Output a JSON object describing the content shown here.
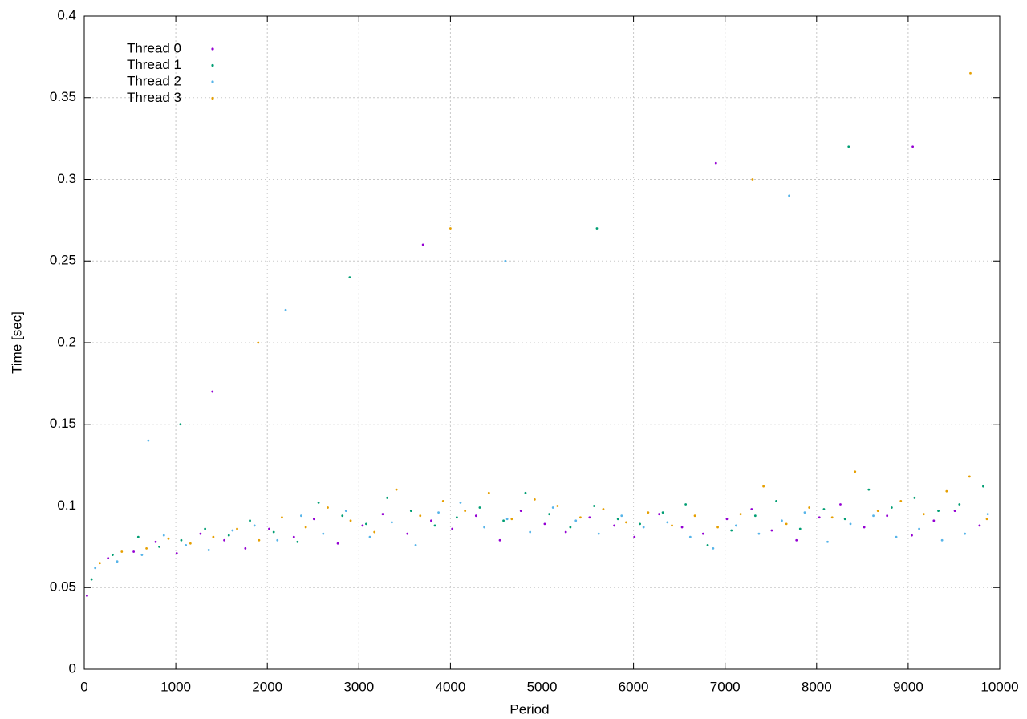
{
  "chart_data": {
    "type": "scatter",
    "x_label": "Period",
    "y_label": "Time [sec]",
    "xlim": [
      0,
      10000
    ],
    "ylim": [
      0,
      0.4
    ],
    "xticks": [
      0,
      1000,
      2000,
      3000,
      4000,
      5000,
      6000,
      7000,
      8000,
      9000,
      10000
    ],
    "yticks": [
      0,
      0.05,
      0.1,
      0.15,
      0.2,
      0.25,
      0.3,
      0.35,
      0.4
    ],
    "grid": true,
    "legend": "top-left",
    "series": [
      {
        "name": "Thread 0",
        "color": "#9400d3",
        "x": [
          30,
          260,
          540,
          780,
          1010,
          1270,
          1530,
          1760,
          2020,
          2290,
          2510,
          2770,
          3040,
          3260,
          3530,
          3790,
          4020,
          4280,
          4540,
          4770,
          5030,
          5260,
          5520,
          5790,
          6010,
          6280,
          6530,
          6760,
          7020,
          7290,
          7510,
          7780,
          8030,
          8260,
          8520,
          8770,
          9040,
          9280,
          9510,
          9780,
          1400,
          3700,
          6900,
          9050
        ],
        "values": [
          0.045,
          0.068,
          0.072,
          0.078,
          0.071,
          0.083,
          0.079,
          0.074,
          0.086,
          0.081,
          0.092,
          0.077,
          0.088,
          0.095,
          0.083,
          0.091,
          0.086,
          0.094,
          0.079,
          0.097,
          0.089,
          0.084,
          0.093,
          0.088,
          0.081,
          0.095,
          0.087,
          0.083,
          0.092,
          0.098,
          0.085,
          0.079,
          0.093,
          0.101,
          0.087,
          0.094,
          0.082,
          0.091,
          0.097,
          0.088,
          0.17,
          0.26,
          0.31,
          0.32
        ]
      },
      {
        "name": "Thread 1",
        "color": "#009e73",
        "x": [
          80,
          310,
          590,
          820,
          1060,
          1320,
          1580,
          1810,
          2070,
          2330,
          2560,
          2820,
          3080,
          3310,
          3570,
          3830,
          4070,
          4320,
          4580,
          4820,
          5080,
          5310,
          5570,
          5830,
          6070,
          6320,
          6570,
          6810,
          7070,
          7330,
          7560,
          7820,
          8080,
          8310,
          8570,
          8820,
          9070,
          9330,
          9560,
          9820,
          1050,
          2900,
          5600,
          8350
        ],
        "values": [
          0.055,
          0.07,
          0.081,
          0.075,
          0.079,
          0.086,
          0.082,
          0.091,
          0.084,
          0.078,
          0.102,
          0.094,
          0.089,
          0.105,
          0.097,
          0.088,
          0.093,
          0.099,
          0.091,
          0.108,
          0.095,
          0.087,
          0.1,
          0.092,
          0.089,
          0.096,
          0.101,
          0.076,
          0.085,
          0.094,
          0.103,
          0.086,
          0.098,
          0.092,
          0.11,
          0.099,
          0.105,
          0.097,
          0.101,
          0.112,
          0.15,
          0.24,
          0.27,
          0.32
        ]
      },
      {
        "name": "Thread 2",
        "color": "#56b4e9",
        "x": [
          120,
          360,
          630,
          870,
          1110,
          1360,
          1620,
          1860,
          2110,
          2370,
          2610,
          2860,
          3120,
          3360,
          3620,
          3870,
          4110,
          4370,
          4620,
          4870,
          5120,
          5370,
          5620,
          5870,
          6110,
          6370,
          6620,
          6870,
          7120,
          7370,
          7620,
          7870,
          8120,
          8370,
          8620,
          8870,
          9120,
          9370,
          9620,
          9870,
          700,
          2200,
          4600,
          7700
        ],
        "values": [
          0.062,
          0.066,
          0.07,
          0.082,
          0.076,
          0.073,
          0.085,
          0.088,
          0.079,
          0.094,
          0.083,
          0.097,
          0.081,
          0.09,
          0.076,
          0.096,
          0.102,
          0.087,
          0.092,
          0.084,
          0.099,
          0.091,
          0.083,
          0.094,
          0.087,
          0.09,
          0.081,
          0.074,
          0.088,
          0.083,
          0.091,
          0.096,
          0.078,
          0.089,
          0.094,
          0.081,
          0.086,
          0.079,
          0.083,
          0.095,
          0.14,
          0.22,
          0.25,
          0.29
        ]
      },
      {
        "name": "Thread 3",
        "color": "#e69f00",
        "x": [
          170,
          410,
          680,
          920,
          1160,
          1410,
          1670,
          1910,
          2160,
          2420,
          2660,
          2910,
          3170,
          3410,
          3670,
          3920,
          4160,
          4420,
          4670,
          4920,
          5170,
          5420,
          5670,
          5920,
          6160,
          6420,
          6670,
          6920,
          7170,
          7420,
          7670,
          7920,
          8170,
          8420,
          8670,
          8920,
          9170,
          9420,
          9670,
          9860,
          1900,
          4000,
          7300,
          9680
        ],
        "values": [
          0.065,
          0.072,
          0.074,
          0.08,
          0.077,
          0.081,
          0.086,
          0.079,
          0.093,
          0.087,
          0.099,
          0.091,
          0.084,
          0.11,
          0.094,
          0.103,
          0.097,
          0.108,
          0.092,
          0.104,
          0.1,
          0.093,
          0.098,
          0.09,
          0.096,
          0.088,
          0.094,
          0.087,
          0.095,
          0.112,
          0.089,
          0.099,
          0.093,
          0.121,
          0.097,
          0.103,
          0.095,
          0.109,
          0.118,
          0.092,
          0.2,
          0.27,
          0.3,
          0.365
        ]
      }
    ]
  }
}
